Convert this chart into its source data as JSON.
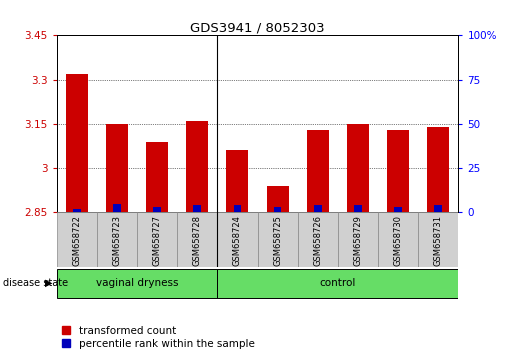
{
  "title": "GDS3941 / 8052303",
  "samples": [
    "GSM658722",
    "GSM658723",
    "GSM658727",
    "GSM658728",
    "GSM658724",
    "GSM658725",
    "GSM658726",
    "GSM658729",
    "GSM658730",
    "GSM658731"
  ],
  "transformed_count": [
    3.32,
    3.15,
    3.09,
    3.16,
    3.06,
    2.94,
    3.13,
    3.15,
    3.13,
    3.14
  ],
  "percentile_rank": [
    2,
    5,
    3,
    4,
    4,
    3,
    4,
    4,
    3,
    4
  ],
  "groups": [
    "vaginal dryness",
    "vaginal dryness",
    "vaginal dryness",
    "vaginal dryness",
    "control",
    "control",
    "control",
    "control",
    "control",
    "control"
  ],
  "ylim_left": [
    2.85,
    3.45
  ],
  "ylim_right": [
    0,
    100
  ],
  "yticks_left": [
    2.85,
    3.0,
    3.15,
    3.3,
    3.45
  ],
  "ytick_labels_left": [
    "2.85",
    "3",
    "3.15",
    "3.3",
    "3.45"
  ],
  "yticks_right": [
    0,
    25,
    50,
    75,
    100
  ],
  "ytick_labels_right": [
    "0",
    "25",
    "50",
    "75",
    "100%"
  ],
  "bar_color_red": "#CC0000",
  "bar_color_blue": "#0000BB",
  "bar_width": 0.55,
  "plot_bg_color": "#FFFFFF",
  "legend_red_label": "transformed count",
  "legend_blue_label": "percentile rank within the sample",
  "vaginal_count": 4,
  "control_count": 6,
  "green_color": "#66DD66",
  "label_bg_color": "#D0D0D0"
}
